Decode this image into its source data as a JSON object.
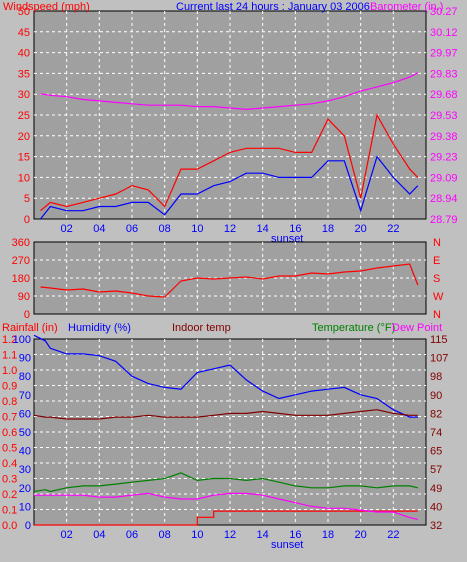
{
  "header": {
    "left_label": "Windspeed (mph)",
    "center_label": "Current last 24 hours : January 03 2006",
    "right_label": "Barometer (in.)"
  },
  "panel3_labels": {
    "rain": "Rainfall (in)",
    "humidity": "Humidity (%)",
    "indoor": "Indoor temp",
    "temperature": "Temperature (°F)",
    "dewpoint": "Dew Point"
  },
  "colors": {
    "frame_bg": "#c0c0c0",
    "plot_bg": "#a0a0a0",
    "grid": "#ffffff",
    "wind": "#ff0000",
    "gust": "#0000ff",
    "barometer": "#ff00ff",
    "direction": "#ff0000",
    "rain": "#ff0000",
    "humidity": "#0000ff",
    "indoor": "#800000",
    "temperature": "#008000",
    "dewpoint": "#ff00ff",
    "hour_axis": "#0000ff"
  },
  "hour_ticks": [
    "02",
    "04",
    "06",
    "08",
    "10",
    "12",
    "14",
    "16",
    "18",
    "20",
    "22"
  ],
  "sunset_label": "sunset",
  "chart_data": [
    {
      "type": "line",
      "title": "Current last 24 hours : January 03 2006",
      "x_hours": [
        0.4,
        1,
        2,
        3,
        4,
        5,
        6,
        7,
        8,
        9,
        10,
        11,
        12,
        13,
        14,
        15,
        16,
        17,
        18,
        19,
        20,
        21,
        22,
        23,
        23.5
      ],
      "x_ticks": [
        "02",
        "04",
        "06",
        "08",
        "10",
        "12",
        "14",
        "16",
        "18",
        "20",
        "22"
      ],
      "y_left_label": "Windspeed (mph)",
      "y_left_ticks": [
        "0",
        "5",
        "10",
        "15",
        "20",
        "25",
        "30",
        "35",
        "40",
        "45",
        "50"
      ],
      "ylim_left": [
        0,
        50
      ],
      "y_right_label": "Barometer (in.)",
      "y_right_ticks": [
        "28.79",
        "28.94",
        "29.09",
        "29.23",
        "29.38",
        "29.53",
        "29.68",
        "29.83",
        "29.97",
        "30.12",
        "30.27"
      ],
      "ylim_right": [
        28.79,
        30.27
      ],
      "series": [
        {
          "values": [
            2,
            4,
            3,
            4,
            5,
            6,
            8,
            7,
            3,
            12,
            12,
            14,
            16,
            17,
            17,
            17,
            16,
            16,
            24,
            20,
            5,
            25,
            18,
            12,
            10
          ]
        },
        {
          "values": [
            0,
            3,
            2,
            2,
            3,
            3,
            4,
            4,
            1,
            6,
            6,
            8,
            9,
            11,
            11,
            10,
            10,
            10,
            14,
            14,
            2,
            15,
            10,
            6,
            8
          ]
        },
        {
          "values": [
            29.68,
            29.67,
            29.66,
            29.64,
            29.63,
            29.62,
            29.61,
            29.6,
            29.6,
            29.6,
            29.59,
            29.59,
            29.58,
            29.57,
            29.58,
            29.59,
            29.6,
            29.61,
            29.63,
            29.66,
            29.7,
            29.73,
            29.76,
            29.8,
            29.83
          ]
        }
      ]
    },
    {
      "type": "line",
      "y_left_ticks": [
        "0",
        "90",
        "180",
        "270",
        "360"
      ],
      "ylim": [
        0,
        360
      ],
      "y_right_ticks": [
        "N",
        "W",
        "S",
        "E",
        "N"
      ],
      "x_hours": [
        0.4,
        1,
        2,
        3,
        4,
        5,
        6,
        7,
        8,
        9,
        10,
        11,
        12,
        13,
        14,
        15,
        16,
        17,
        18,
        19,
        20,
        21,
        22,
        23,
        23.5
      ],
      "series": [
        {
          "values": [
            135,
            130,
            120,
            125,
            110,
            115,
            105,
            90,
            85,
            165,
            180,
            175,
            180,
            185,
            175,
            190,
            190,
            205,
            200,
            210,
            215,
            230,
            240,
            250,
            145
          ]
        }
      ]
    },
    {
      "type": "line",
      "x_hours": [
        0,
        0.7,
        1,
        2,
        3,
        4,
        5,
        6,
        7,
        8,
        9,
        10,
        11,
        12,
        13,
        14,
        15,
        16,
        17,
        18,
        19,
        20,
        21,
        22,
        23,
        23.5
      ],
      "y_left_ticks": [
        "0.0",
        "0.1",
        "0.2",
        "0.3",
        "0.4",
        "0.5",
        "0.6",
        "0.7",
        "0.8",
        "0.9",
        "1.0",
        "1.1",
        "1.2"
      ],
      "ylim_rain": [
        0,
        1.2
      ],
      "y_left2_ticks": [
        "0",
        "10",
        "20",
        "30",
        "40",
        "50",
        "60",
        "70",
        "80",
        "90",
        "100"
      ],
      "ylim_percent": [
        0,
        100
      ],
      "y_right_ticks": [
        "32",
        "40",
        "49",
        "57",
        "65",
        "74",
        "82",
        "90",
        "98",
        "107",
        "115"
      ],
      "ylim_temp": [
        32,
        115
      ],
      "series": [
        {
          "values": [
            0,
            0,
            0,
            0,
            0,
            0,
            0,
            0,
            0,
            0,
            0,
            0.05,
            0.09,
            0.09,
            0.09,
            0.09,
            0.09,
            0.09,
            0.09,
            0.09,
            0.09,
            0.09,
            0.09,
            0.09,
            0.09,
            0.09
          ]
        },
        {
          "values": [
            102,
            99,
            95,
            92,
            92,
            91,
            88,
            80,
            76,
            74,
            73,
            82,
            84,
            86,
            78,
            72,
            68,
            70,
            72,
            73,
            74,
            70,
            68,
            62,
            58,
            58
          ]
        },
        {
          "values": [
            59,
            58,
            58,
            57,
            57,
            57,
            58,
            58,
            59,
            58,
            58,
            58,
            59,
            60,
            60,
            61,
            60,
            59,
            59,
            59,
            60,
            61,
            62,
            60,
            59,
            59
          ]
        },
        {
          "values": [
            18,
            19,
            18,
            20,
            21,
            21,
            22,
            23,
            24,
            25,
            28,
            24,
            25,
            25,
            24,
            25,
            23,
            21,
            20,
            20,
            21,
            21,
            20,
            21,
            21,
            20
          ]
        },
        {
          "values": [
            16,
            16,
            16,
            16,
            16,
            15,
            15,
            16,
            17,
            15,
            14,
            14,
            16,
            17,
            17,
            16,
            14,
            12,
            10,
            9,
            9,
            8,
            7,
            7,
            4,
            3
          ]
        }
      ]
    }
  ]
}
